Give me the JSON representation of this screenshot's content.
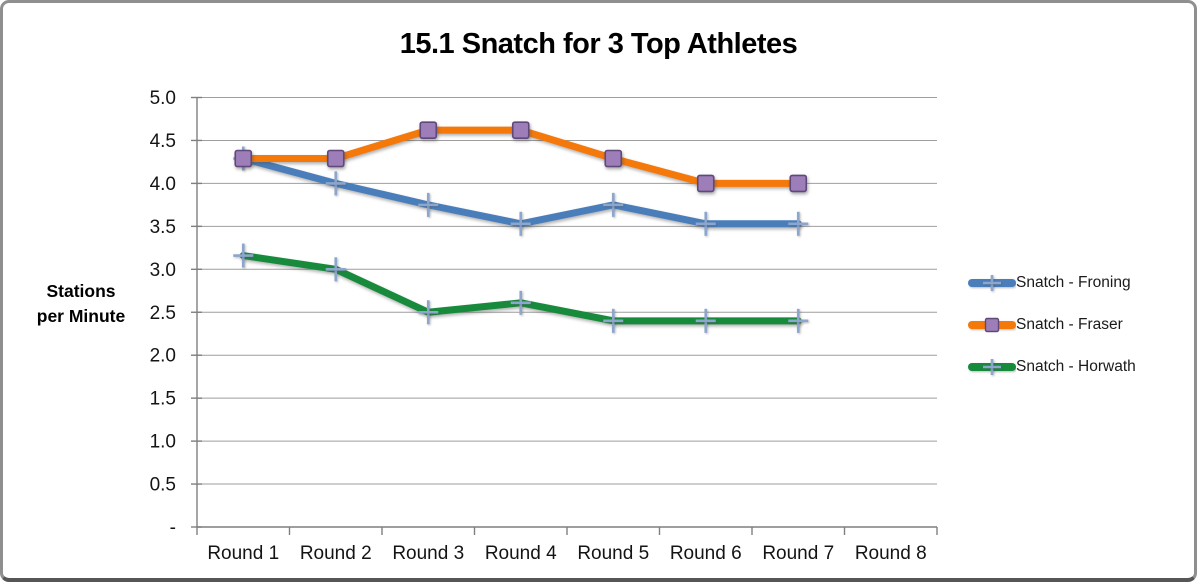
{
  "chart_data": {
    "type": "line",
    "title": "15.1 Snatch for 3 Top Athletes",
    "ylabel": "Stations per Minute",
    "ylabel_lines": [
      "Stations",
      "per Minute"
    ],
    "xlabel": "",
    "categories": [
      "Round 1",
      "Round 2",
      "Round 3",
      "Round 4",
      "Round 5",
      "Round 6",
      "Round 7",
      "Round 8"
    ],
    "ylim": [
      0,
      5.0
    ],
    "ytick_step": 0.5,
    "ytick_labels": [
      "-",
      "0.5",
      "1.0",
      "1.5",
      "2.0",
      "2.5",
      "3.0",
      "3.5",
      "4.0",
      "4.5",
      "5.0"
    ],
    "grid": true,
    "legend_position": "right",
    "colors": {
      "froning_line": "#4A7EBB",
      "fraser_line": "#F5780A",
      "horwath_line": "#178A3C",
      "plus_marker": "#8CA6CE",
      "square_marker_fill": "#9E7EB9",
      "square_marker_stroke": "#5F497A",
      "gridline": "#9e9e9e",
      "axis": "#7f7f7f"
    },
    "series": [
      {
        "name": "Snatch - Froning",
        "color": "#4A7EBB",
        "marker": "plus",
        "marker_color": "#8CA6CE",
        "values": [
          4.29,
          4.0,
          3.75,
          3.53,
          3.75,
          3.53,
          3.53,
          null
        ]
      },
      {
        "name": "Snatch - Fraser",
        "color": "#F5780A",
        "marker": "square",
        "marker_fill": "#9E7EB9",
        "marker_stroke": "#5F497A",
        "values": [
          4.29,
          4.29,
          4.62,
          4.62,
          4.29,
          4.0,
          4.0,
          null
        ]
      },
      {
        "name": "Snatch - Horwath",
        "color": "#178A3C",
        "marker": "plus",
        "marker_color": "#8CA6CE",
        "values": [
          3.16,
          3.0,
          2.5,
          2.61,
          2.4,
          2.4,
          2.4,
          null
        ]
      }
    ]
  }
}
